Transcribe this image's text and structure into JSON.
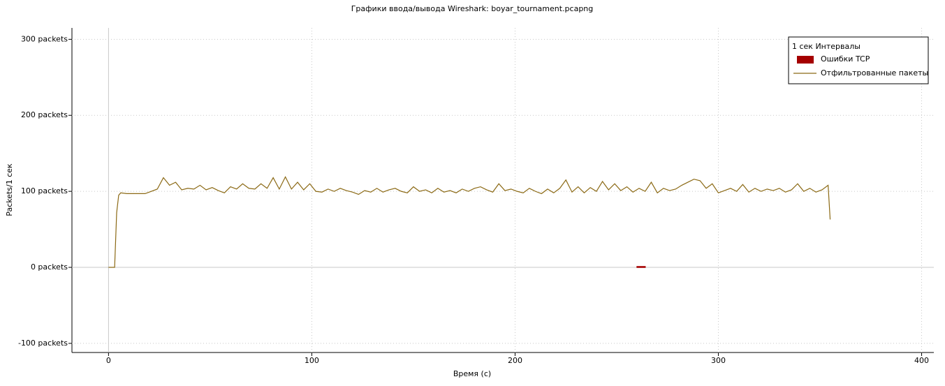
{
  "chart_data": {
    "type": "line",
    "title": "Графики ввода/вывода Wireshark: boyar_tournament.pcapng",
    "xlabel": "Время (с)",
    "ylabel": "Packets/1 сек",
    "legend_title": "1 сек Интервалы",
    "legend": "top-right",
    "grid": true,
    "xlim": [
      -18,
      406
    ],
    "xticks": [
      0,
      100,
      200,
      300,
      400
    ],
    "ylim": [
      -112,
      315
    ],
    "yticks": [
      {
        "value": -100,
        "label": "-100 packets"
      },
      {
        "value": 0,
        "label": "0 packets"
      },
      {
        "value": 100,
        "label": "100 packets"
      },
      {
        "value": 200,
        "label": "200 packets"
      },
      {
        "value": 300,
        "label": "300 packets"
      }
    ],
    "series": [
      {
        "name": "Ошибки TCP",
        "color": "#a50000",
        "style": "bar",
        "x": [
          0,
          4,
          8,
          12,
          16,
          20,
          24,
          28,
          32,
          36,
          40,
          44,
          48,
          52,
          56,
          60,
          64,
          68,
          72,
          76,
          80,
          84,
          88,
          92,
          96,
          100,
          104,
          108,
          112,
          116,
          120,
          124,
          128,
          132,
          136,
          140,
          144,
          148,
          152,
          156,
          160,
          164,
          168,
          172,
          176,
          180,
          184,
          188,
          192,
          196,
          200,
          204,
          208,
          212,
          216,
          220,
          224,
          228,
          232,
          236,
          240,
          244,
          248,
          252,
          256,
          260
        ],
        "values": [
          0,
          0,
          0,
          0,
          0,
          0,
          0,
          0,
          0,
          0,
          0,
          0,
          0,
          0,
          0,
          0,
          0,
          0,
          0,
          0,
          0,
          0,
          0,
          0,
          0,
          0,
          0,
          0,
          0,
          0,
          0,
          0,
          0,
          0,
          0,
          0,
          0,
          0,
          0,
          0,
          0,
          0,
          0,
          0,
          0,
          0,
          0,
          0,
          0,
          0,
          0,
          0,
          0,
          0,
          0,
          0,
          0,
          0,
          0,
          0,
          0,
          0,
          0,
          0,
          0,
          1
        ]
      },
      {
        "name": "Отфильтрованные пакеты",
        "color": "#8b6914",
        "style": "line",
        "x": [
          0,
          3,
          4,
          5,
          6,
          9,
          12,
          15,
          18,
          21,
          24,
          27,
          30,
          33,
          36,
          39,
          42,
          45,
          48,
          51,
          54,
          57,
          60,
          63,
          66,
          69,
          72,
          75,
          78,
          81,
          84,
          87,
          90,
          93,
          96,
          99,
          102,
          105,
          108,
          111,
          114,
          117,
          120,
          123,
          126,
          129,
          132,
          135,
          138,
          141,
          144,
          147,
          150,
          153,
          156,
          159,
          162,
          165,
          168,
          171,
          174,
          177,
          180,
          183,
          186,
          189,
          192,
          195,
          198,
          201,
          204,
          207,
          210,
          213,
          216,
          219,
          222,
          225,
          228,
          231,
          234,
          237,
          240,
          243,
          246,
          249,
          252,
          255,
          258,
          261,
          264,
          267,
          270,
          273,
          276,
          279,
          282,
          285,
          288,
          291,
          294,
          297,
          300,
          303,
          306,
          309,
          312,
          315,
          318,
          321,
          324,
          327,
          330,
          333,
          336,
          339,
          342,
          345,
          348,
          351,
          354,
          355
        ],
        "values": [
          0,
          0,
          72,
          95,
          98,
          97,
          97,
          97,
          97,
          100,
          103,
          118,
          108,
          112,
          102,
          104,
          103,
          108,
          102,
          105,
          101,
          98,
          106,
          103,
          110,
          104,
          103,
          110,
          104,
          118,
          103,
          119,
          103,
          112,
          102,
          110,
          100,
          99,
          103,
          100,
          104,
          101,
          99,
          96,
          101,
          99,
          104,
          99,
          102,
          104,
          100,
          98,
          106,
          100,
          102,
          98,
          104,
          99,
          101,
          98,
          103,
          100,
          104,
          106,
          102,
          99,
          110,
          101,
          103,
          100,
          98,
          104,
          100,
          97,
          103,
          98,
          104,
          115,
          99,
          106,
          98,
          105,
          100,
          113,
          102,
          110,
          101,
          106,
          99,
          104,
          100,
          112,
          98,
          104,
          101,
          103,
          108,
          112,
          116,
          114,
          104,
          110,
          98,
          101,
          104,
          100,
          109,
          99,
          104,
          100,
          103,
          101,
          104,
          99,
          102,
          110,
          100,
          104,
          99,
          102,
          108,
          63
        ]
      }
    ]
  }
}
